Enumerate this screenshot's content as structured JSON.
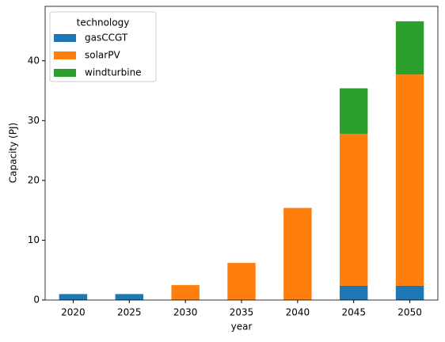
{
  "chart_data": {
    "type": "stacked_bar",
    "xlabel": "year",
    "ylabel": "Capacity (PJ)",
    "categories": [
      "2020",
      "2025",
      "2030",
      "2035",
      "2040",
      "2045",
      "2050"
    ],
    "series": [
      {
        "name": "gasCCGT",
        "color": "#1f77b4",
        "values": [
          1.0,
          1.0,
          0,
          0,
          0,
          2.4,
          2.4
        ]
      },
      {
        "name": "solarPV",
        "color": "#ff7f0e",
        "values": [
          0,
          0,
          2.5,
          6.2,
          15.4,
          25.4,
          35.3
        ]
      },
      {
        "name": "windturbine",
        "color": "#2ca02c",
        "values": [
          0,
          0,
          0,
          0,
          0,
          7.6,
          8.9
        ]
      }
    ],
    "legend_title": "technology",
    "legend_position": "upper left",
    "ylim": [
      0,
      49.1
    ],
    "yticks": [
      0,
      10,
      20,
      30,
      40
    ],
    "grid": false
  }
}
